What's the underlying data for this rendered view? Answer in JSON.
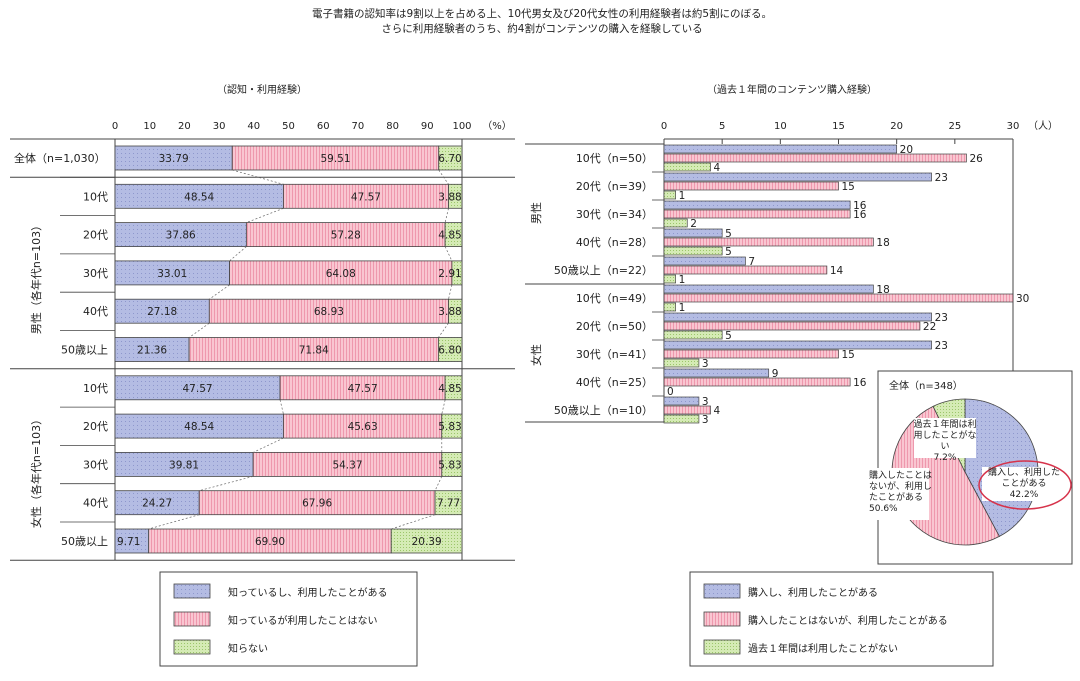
{
  "title_line1": "電子書籍の認知率は9割以上を占める上、10代男女及び20代女性の利用経験者は約5割にのぼる。",
  "title_line2": "さらに利用経験者のうち、約4割がコンテンツの購入を経験している",
  "colors": {
    "blue": "#b4bce3",
    "pink": "#f7b8c6",
    "green": "#c8e3a4",
    "stroke": "#444444"
  },
  "left_chart": {
    "subtitle": "（認知・利用経験）",
    "unit": "（%）",
    "group_labels": [
      "男性（各年代n=103）",
      "女性（各年代n=103）"
    ]
  },
  "right_chart": {
    "subtitle": "（過去１年間のコンテンツ購入経験）",
    "unit": "（人）",
    "group_labels": [
      "男性",
      "女性"
    ]
  },
  "pie_chart": {
    "title": "全体（n=348）",
    "labels": [
      "購入し、利用した\nことがある\n42.2%",
      "購入したことは\nないが、利用し\nたことがある\n50.6%",
      "過去１年間は利\n用したことがな\nい\n7.2%"
    ]
  },
  "legend_left": [
    "知っているし、利用したことがある",
    "知っているが利用したことはない",
    "知らない"
  ],
  "legend_right": [
    "購入し、利用したことがある",
    "購入したことはないが、利用したことがある",
    "過去１年間は利用したことがない"
  ],
  "chart_data": [
    {
      "type": "bar",
      "orientation": "horizontal",
      "stacked": true,
      "categories": [
        "全体（n=1,030）",
        "10代",
        "20代",
        "30代",
        "40代",
        "50歳以上",
        "10代",
        "20代",
        "30代",
        "40代",
        "50歳以上"
      ],
      "groups": [
        {
          "label": "男性（各年代n=103）",
          "start": 1,
          "end": 5
        },
        {
          "label": "女性（各年代n=103）",
          "start": 6,
          "end": 10
        }
      ],
      "series": [
        {
          "name": "知っているし、利用したことがある",
          "color": "#b4bce3",
          "values": [
            33.79,
            48.54,
            37.86,
            33.01,
            27.18,
            21.36,
            47.57,
            48.54,
            39.81,
            24.27,
            9.71
          ]
        },
        {
          "name": "知っているが利用したことはない",
          "color": "#f7b8c6",
          "values": [
            59.51,
            47.57,
            57.28,
            64.08,
            68.93,
            71.84,
            47.57,
            45.63,
            54.37,
            67.96,
            69.9
          ]
        },
        {
          "name": "知らない",
          "color": "#c8e3a4",
          "values": [
            6.7,
            3.88,
            4.85,
            2.91,
            3.88,
            6.8,
            4.85,
            5.83,
            5.83,
            7.77,
            20.39
          ]
        }
      ],
      "value_labels": [
        [
          "33.79",
          "48.54",
          "37.86",
          "33.01",
          "27.18",
          "21.36",
          "47.57",
          "48.54",
          "39.81",
          "24.27",
          "9.71"
        ],
        [
          "59.51",
          "47.57",
          "57.28",
          "64.08",
          "68.93",
          "71.84",
          "47.57",
          "45.63",
          "54.37",
          "67.96",
          "69.90"
        ],
        [
          "6.70",
          "3.88",
          "4.85",
          "2.91",
          "3.88",
          "6.80",
          "4.85",
          "5.83",
          "5.83",
          "7.77",
          "20.39"
        ]
      ],
      "xlim": [
        0,
        100
      ],
      "xticks": [
        0,
        10,
        20,
        30,
        40,
        50,
        60,
        70,
        80,
        90,
        100
      ]
    },
    {
      "type": "bar",
      "orientation": "horizontal",
      "stacked": false,
      "categories": [
        "10代（n=50）",
        "20代（n=39）",
        "30代（n=34）",
        "40代（n=28）",
        "50歳以上（n=22）",
        "10代（n=49）",
        "20代（n=50）",
        "30代（n=41）",
        "40代（n=25）",
        "50歳以上（n=10）"
      ],
      "groups": [
        {
          "label": "男性",
          "start": 0,
          "end": 4
        },
        {
          "label": "女性",
          "start": 5,
          "end": 9
        }
      ],
      "series": [
        {
          "name": "購入し、利用したことがある",
          "color": "#b4bce3",
          "values": [
            20,
            23,
            16,
            5,
            7,
            18,
            23,
            23,
            9,
            3
          ]
        },
        {
          "name": "購入したことはないが、利用したことがある",
          "color": "#f7b8c6",
          "values": [
            26,
            15,
            16,
            18,
            14,
            30,
            22,
            15,
            16,
            4
          ]
        },
        {
          "name": "過去１年間は利用したことがない",
          "color": "#c8e3a4",
          "values": [
            4,
            1,
            2,
            5,
            1,
            1,
            5,
            3,
            0,
            3
          ]
        }
      ],
      "xlim": [
        0,
        30
      ],
      "xticks": [
        0,
        5,
        10,
        15,
        20,
        25,
        30
      ]
    },
    {
      "type": "pie",
      "title": "全体（n=348）",
      "labels": [
        "購入し、利用したことがある",
        "購入したことはないが、利用したことがある",
        "過去１年間は利用したことがない"
      ],
      "values": [
        42.2,
        50.6,
        7.2
      ]
    }
  ]
}
